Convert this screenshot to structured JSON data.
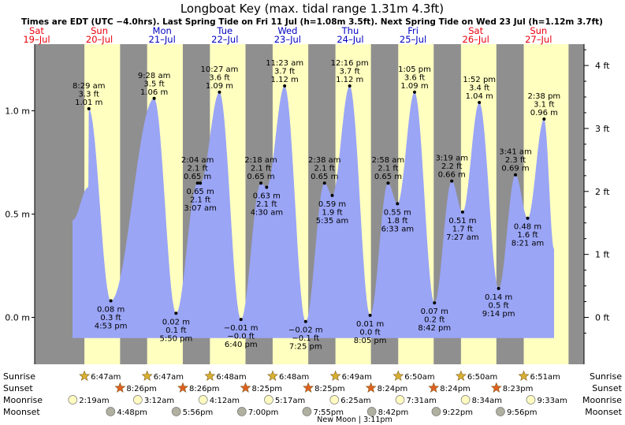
{
  "chart_data": {
    "type": "area",
    "title": "Longboat Key (max. tidal range 1.31m 4.3ft)",
    "subtitle": "Times are EDT (UTC −4.0hrs). Last Spring Tide on Fri 11 Jul (h=1.08m 3.5ft). Next Spring Tide on Wed 23 Jul (h=1.12m 3.7ft)",
    "days": [
      {
        "dow": "Sat",
        "date": "19–Jul"
      },
      {
        "dow": "Sun",
        "date": "20–Jul"
      },
      {
        "dow": "Mon",
        "date": "21–Jul"
      },
      {
        "dow": "Tue",
        "date": "22–Jul"
      },
      {
        "dow": "Wed",
        "date": "23–Jul"
      },
      {
        "dow": "Thu",
        "date": "24–Jul"
      },
      {
        "dow": "Fri",
        "date": "25–Jul"
      },
      {
        "dow": "Sat",
        "date": "26–Jul"
      },
      {
        "dow": "Sun",
        "date": "27–Jul"
      }
    ],
    "ylim": [
      -0.1,
      1.3
    ],
    "left_ticks": [
      {
        "v": 0.0,
        "label": "0.0 m"
      },
      {
        "v": 0.5,
        "label": "0.5 m"
      },
      {
        "v": 1.0,
        "label": "1.0 m"
      }
    ],
    "right_ticks": [
      {
        "v": 0,
        "label": "0 ft"
      },
      {
        "v": 1,
        "label": "1 ft"
      },
      {
        "v": 2,
        "label": "2 ft"
      },
      {
        "v": 3,
        "label": "3 ft"
      },
      {
        "v": 4,
        "label": "4 ft"
      }
    ],
    "tides": [
      {
        "day": 1,
        "time": "8:29 am",
        "h": 1.01,
        "ft": "3.3 ft",
        "m": "1.01 m",
        "type": "high"
      },
      {
        "day": 1,
        "time": "4:53 pm",
        "h": 0.08,
        "ft": "0.3 ft",
        "m": "0.08 m",
        "type": "low"
      },
      {
        "day": 2,
        "time": "9:28 am",
        "h": 1.06,
        "ft": "3.5 ft",
        "m": "1.06 m",
        "type": "high"
      },
      {
        "day": 2,
        "time": "5:50 pm",
        "h": 0.02,
        "ft": "0.1 ft",
        "m": "0.02 m",
        "type": "low"
      },
      {
        "day": 3,
        "time": "2:04 am",
        "h": 0.65,
        "ft": "2.1 ft",
        "m": "0.65 m",
        "type": "high"
      },
      {
        "day": 3,
        "time": "3:07 am",
        "h": 0.65,
        "ft": "2.1 ft",
        "m": "0.65 m",
        "type": "low"
      },
      {
        "day": 3,
        "time": "10:27 am",
        "h": 1.09,
        "ft": "3.6 ft",
        "m": "1.09 m",
        "type": "high"
      },
      {
        "day": 3,
        "time": "6:40 pm",
        "h": -0.01,
        "ft": "−0.0 ft",
        "m": "−0.01 m",
        "type": "low"
      },
      {
        "day": 4,
        "time": "2:18 am",
        "h": 0.65,
        "ft": "2.1 ft",
        "m": "0.65 m",
        "type": "high"
      },
      {
        "day": 4,
        "time": "4:30 am",
        "h": 0.63,
        "ft": "2.1 ft",
        "m": "0.63 m",
        "type": "low"
      },
      {
        "day": 4,
        "time": "11:23 am",
        "h": 1.12,
        "ft": "3.7 ft",
        "m": "1.12 m",
        "type": "high"
      },
      {
        "day": 4,
        "time": "7:25 pm",
        "h": -0.02,
        "ft": "−0.1 ft",
        "m": "−0.02 m",
        "type": "low"
      },
      {
        "day": 5,
        "time": "2:38 am",
        "h": 0.65,
        "ft": "2.1 ft",
        "m": "0.65 m",
        "type": "high"
      },
      {
        "day": 5,
        "time": "5:35 am",
        "h": 0.59,
        "ft": "1.9 ft",
        "m": "0.59 m",
        "type": "low"
      },
      {
        "day": 5,
        "time": "12:16 pm",
        "h": 1.12,
        "ft": "3.7 ft",
        "m": "1.12 m",
        "type": "high"
      },
      {
        "day": 5,
        "time": "8:05 pm",
        "h": 0.01,
        "ft": "0.0 ft",
        "m": "0.01 m",
        "type": "low"
      },
      {
        "day": 6,
        "time": "2:58 am",
        "h": 0.65,
        "ft": "2.1 ft",
        "m": "0.65 m",
        "type": "high"
      },
      {
        "day": 6,
        "time": "6:33 am",
        "h": 0.55,
        "ft": "1.8 ft",
        "m": "0.55 m",
        "type": "low"
      },
      {
        "day": 6,
        "time": "1:05 pm",
        "h": 1.09,
        "ft": "3.6 ft",
        "m": "1.09 m",
        "type": "high"
      },
      {
        "day": 6,
        "time": "8:42 pm",
        "h": 0.07,
        "ft": "0.2 ft",
        "m": "0.07 m",
        "type": "low"
      },
      {
        "day": 7,
        "time": "3:19 am",
        "h": 0.66,
        "ft": "2.2 ft",
        "m": "0.66 m",
        "type": "high"
      },
      {
        "day": 7,
        "time": "7:27 am",
        "h": 0.51,
        "ft": "1.7 ft",
        "m": "0.51 m",
        "type": "low"
      },
      {
        "day": 7,
        "time": "1:52 pm",
        "h": 1.04,
        "ft": "3.4 ft",
        "m": "1.04 m",
        "type": "high"
      },
      {
        "day": 7,
        "time": "9:14 pm",
        "h": 0.14,
        "ft": "0.5 ft",
        "m": "0.14 m",
        "type": "low"
      },
      {
        "day": 8,
        "time": "3:41 am",
        "h": 0.69,
        "ft": "2.3 ft",
        "m": "0.69 m",
        "type": "high"
      },
      {
        "day": 8,
        "time": "8:21 am",
        "h": 0.48,
        "ft": "1.6 ft",
        "m": "0.48 m",
        "type": "low"
      },
      {
        "day": 8,
        "time": "2:38 pm",
        "h": 0.96,
        "ft": "3.1 ft",
        "m": "0.96 m",
        "type": "high"
      }
    ],
    "bottom": {
      "row_labels": [
        "Sunrise",
        "Sunset",
        "Moonrise",
        "Moonset"
      ],
      "sunrise": [
        "6:47am",
        "6:47am",
        "6:48am",
        "6:48am",
        "6:49am",
        "6:50am",
        "6:50am",
        "6:51am"
      ],
      "sunset": [
        "8:26pm",
        "8:26pm",
        "8:25pm",
        "8:25pm",
        "8:24pm",
        "8:24pm",
        "8:23pm"
      ],
      "moonrise": [
        "2:19am",
        "3:12am",
        "4:12am",
        "5:17am",
        "6:25am",
        "7:31am",
        "8:34am",
        "9:33am"
      ],
      "moonset": [
        "4:48pm",
        "5:56pm",
        "7:00pm",
        "7:55pm",
        "8:42pm",
        "9:22pm",
        "9:56pm"
      ],
      "moon_phase": "New Moon | 3:11pm"
    },
    "colors": {
      "water": "#9aa5f6",
      "day": "#ffffc0",
      "night": "#8f8f8f",
      "weekend_label": "#e8000c",
      "weekday_label": "#0000c0",
      "sunrise_star": "#d8b030",
      "sunset_star": "#e06020",
      "moonrise": "#fffac0",
      "moonset": "#b0b0a0"
    }
  }
}
